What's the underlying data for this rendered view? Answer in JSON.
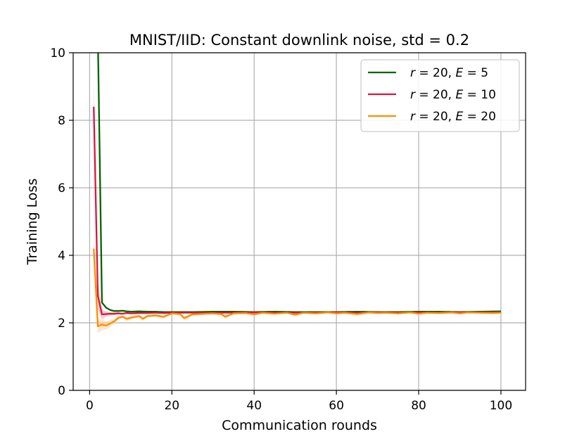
{
  "chart_data": {
    "type": "line",
    "title": "MNIST/IID: Constant downlink noise, std = 0.2",
    "xlabel": "Communication rounds",
    "ylabel": "Training Loss",
    "xlim": [
      -4,
      106
    ],
    "ylim": [
      0,
      10
    ],
    "xticks": [
      "0",
      "20",
      "40",
      "60",
      "80",
      "100"
    ],
    "yticks": [
      "0",
      "2",
      "4",
      "6",
      "8",
      "10"
    ],
    "grid": true,
    "legend_placement": "top-right",
    "series": [
      {
        "name_parts": {
          "lead": "r",
          "eq1": " = 20, ",
          "var": "E",
          "eq2": " = 5"
        },
        "color": "#006400",
        "band": false,
        "x": [
          1,
          2,
          3,
          4,
          5,
          6,
          7,
          8,
          9,
          10,
          12,
          14,
          16,
          18,
          20,
          25,
          30,
          35,
          40,
          45,
          50,
          55,
          60,
          65,
          70,
          75,
          80,
          85,
          90,
          95,
          100
        ],
        "y": [
          14.0,
          10.5,
          2.6,
          2.45,
          2.38,
          2.35,
          2.35,
          2.36,
          2.34,
          2.33,
          2.34,
          2.33,
          2.33,
          2.32,
          2.32,
          2.32,
          2.33,
          2.33,
          2.32,
          2.33,
          2.32,
          2.32,
          2.32,
          2.33,
          2.32,
          2.32,
          2.33,
          2.33,
          2.32,
          2.33,
          2.34
        ]
      },
      {
        "name_parts": {
          "lead": "r",
          "eq1": " = 20, ",
          "var": "E",
          "eq2": " = 10"
        },
        "color": "#dc143c",
        "band": true,
        "band_color": "#f4a6b4",
        "x": [
          1,
          2,
          3,
          4,
          5,
          6,
          7,
          8,
          9,
          10,
          12,
          14,
          16,
          18,
          20,
          25,
          30,
          35,
          40,
          45,
          50,
          55,
          60,
          65,
          70,
          75,
          80,
          85,
          90,
          95,
          100
        ],
        "y": [
          8.4,
          2.8,
          2.25,
          2.26,
          2.27,
          2.27,
          2.28,
          2.27,
          2.29,
          2.28,
          2.29,
          2.29,
          2.3,
          2.29,
          2.3,
          2.3,
          2.3,
          2.3,
          2.31,
          2.3,
          2.3,
          2.3,
          2.31,
          2.3,
          2.31,
          2.3,
          2.31,
          2.3,
          2.31,
          2.31,
          2.31
        ],
        "band_hi": [
          9.2,
          3.2,
          2.4,
          2.34,
          2.32,
          2.31,
          2.31,
          2.3,
          2.31,
          2.3,
          2.31,
          2.31,
          2.32,
          2.31,
          2.32,
          2.32,
          2.32,
          2.32,
          2.33,
          2.32,
          2.32,
          2.32,
          2.33,
          2.32,
          2.33,
          2.32,
          2.33,
          2.32,
          2.33,
          2.33,
          2.33
        ],
        "band_lo": [
          7.6,
          2.4,
          2.1,
          2.18,
          2.22,
          2.23,
          2.25,
          2.24,
          2.27,
          2.26,
          2.27,
          2.27,
          2.28,
          2.27,
          2.28,
          2.28,
          2.28,
          2.28,
          2.29,
          2.28,
          2.28,
          2.28,
          2.29,
          2.28,
          2.29,
          2.28,
          2.29,
          2.28,
          2.29,
          2.29,
          2.29
        ]
      },
      {
        "name_parts": {
          "lead": "r",
          "eq1": " = 20, ",
          "var": "E",
          "eq2": " = 20"
        },
        "color": "#ff8c00",
        "band": true,
        "band_color": "#ffd39b",
        "x": [
          1,
          2,
          3,
          4,
          5,
          6,
          7,
          8,
          9,
          10,
          12,
          13,
          14,
          16,
          18,
          20,
          22,
          23,
          25,
          28,
          30,
          32,
          33,
          35,
          38,
          40,
          42,
          45,
          48,
          50,
          52,
          55,
          58,
          60,
          62,
          65,
          68,
          70,
          72,
          75,
          78,
          80,
          82,
          85,
          88,
          90,
          92,
          95,
          98,
          100
        ],
        "y": [
          4.2,
          1.9,
          1.95,
          1.92,
          1.98,
          2.05,
          2.15,
          2.18,
          2.12,
          2.15,
          2.2,
          2.12,
          2.2,
          2.22,
          2.18,
          2.28,
          2.26,
          2.14,
          2.25,
          2.27,
          2.28,
          2.26,
          2.18,
          2.28,
          2.29,
          2.25,
          2.3,
          2.27,
          2.3,
          2.24,
          2.3,
          2.28,
          2.31,
          2.28,
          2.3,
          2.26,
          2.31,
          2.29,
          2.3,
          2.28,
          2.31,
          2.27,
          2.3,
          2.29,
          2.31,
          2.28,
          2.31,
          2.3,
          2.29,
          2.3
        ],
        "band_hi": [
          4.6,
          2.1,
          2.1,
          2.05,
          2.08,
          2.12,
          2.2,
          2.22,
          2.18,
          2.2,
          2.24,
          2.18,
          2.24,
          2.26,
          2.23,
          2.31,
          2.3,
          2.2,
          2.29,
          2.3,
          2.31,
          2.3,
          2.24,
          2.31,
          2.32,
          2.29,
          2.33,
          2.3,
          2.33,
          2.28,
          2.33,
          2.31,
          2.34,
          2.31,
          2.33,
          2.3,
          2.34,
          2.32,
          2.33,
          2.31,
          2.34,
          2.3,
          2.33,
          2.32,
          2.34,
          2.31,
          2.34,
          2.33,
          2.32,
          2.33
        ],
        "band_lo": [
          3.8,
          1.7,
          1.78,
          1.8,
          1.88,
          1.98,
          2.1,
          2.14,
          2.06,
          2.1,
          2.16,
          2.06,
          2.16,
          2.18,
          2.13,
          2.25,
          2.22,
          2.08,
          2.21,
          2.24,
          2.25,
          2.22,
          2.12,
          2.25,
          2.26,
          2.21,
          2.27,
          2.24,
          2.27,
          2.2,
          2.27,
          2.25,
          2.28,
          2.25,
          2.27,
          2.22,
          2.28,
          2.26,
          2.27,
          2.25,
          2.28,
          2.24,
          2.27,
          2.26,
          2.28,
          2.25,
          2.28,
          2.27,
          2.26,
          2.27
        ]
      }
    ]
  }
}
